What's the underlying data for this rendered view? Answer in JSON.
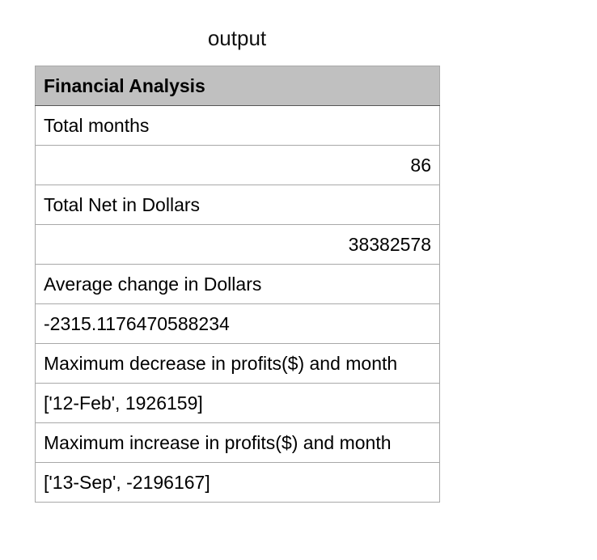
{
  "title": "output",
  "table": {
    "header": "Financial Analysis",
    "rows": [
      {
        "text": "Total months",
        "align": "left"
      },
      {
        "text": "86",
        "align": "right"
      },
      {
        "text": "Total Net in Dollars",
        "align": "left"
      },
      {
        "text": "38382578",
        "align": "right"
      },
      {
        "text": "Average change in Dollars",
        "align": "left"
      },
      {
        "text": "-2315.1176470588234",
        "align": "left"
      },
      {
        "text": "Maximum decrease in profits($) and month",
        "align": "left"
      },
      {
        "text": "['12-Feb', 1926159]",
        "align": "left"
      },
      {
        "text": "Maximum increase in profits($) and month",
        "align": "left"
      },
      {
        "text": "['13-Sep', -2196167]",
        "align": "left"
      }
    ]
  }
}
